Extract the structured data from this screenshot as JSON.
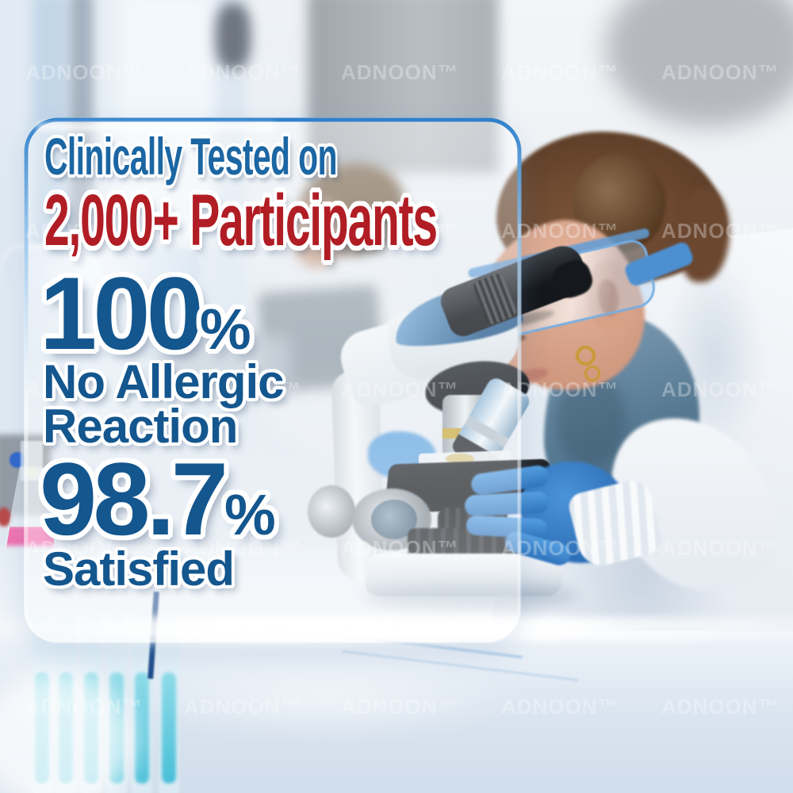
{
  "image": {
    "alt": "Scientist wearing safety goggles and blue nitrile gloves examining a sample under a microscope in a bright laboratory; a translucent glass panel overlays clinical test results"
  },
  "panel": {
    "headline_line1": "Clinically Tested on",
    "headline_line2": "2,000+ Participants",
    "stats": [
      {
        "value": "100",
        "unit": "%",
        "label_line1": "No Allergic",
        "label_line2": "Reaction"
      },
      {
        "value": "98.7",
        "unit": "%",
        "label_line1": "Satisfied"
      }
    ]
  },
  "watermark": {
    "label": "ADNOON™"
  },
  "colors": {
    "headline_blue": "#1b66a3",
    "headline_red": "#b11d24",
    "stat_blue": "#14568e",
    "panel_border_blue": "#2f80ca"
  }
}
